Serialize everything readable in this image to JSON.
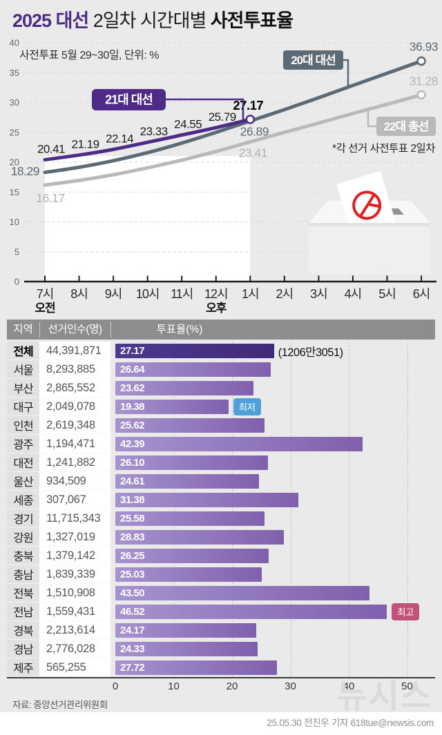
{
  "title": {
    "part1": "2025 대선",
    "part2": "2일차 시간대별",
    "part3": "사전투표율"
  },
  "line_chart_subtitle": "사전투표 5월 29~30일, 단위: %",
  "line_chart_note": "*각 선거 사전투표 2일차",
  "chart_data": [
    {
      "type": "line",
      "title": "2025 대선 2일차 시간대별 사전투표율",
      "subtitle": "사전투표 5월 29~30일, 단위: %",
      "note": "*각 선거 사전투표 2일차",
      "unit": "%",
      "x": [
        "7시",
        "8시",
        "9시",
        "10시",
        "11시",
        "12시",
        "1시",
        "2시",
        "3시",
        "4시",
        "5시",
        "6시"
      ],
      "am_label": "오전",
      "pm_label": "오후",
      "ylim": [
        0,
        40
      ],
      "y_ticks": [
        0,
        5,
        10,
        15,
        20,
        25,
        30,
        35,
        40
      ],
      "grid": "dashed-horizontal",
      "highlight_band": {
        "from": "오전 7시",
        "to": "오후 1시"
      },
      "series": [
        {
          "name": "21대 대선",
          "color": "#4d2b87",
          "values": [
            20.41,
            21.19,
            22.14,
            23.33,
            24.55,
            25.79,
            27.17
          ],
          "labels": [
            "20.41",
            "21.19",
            "22.14",
            "23.33",
            "24.55",
            "25.79",
            "27.17"
          ]
        },
        {
          "name": "20대 대선",
          "color": "#5c6a75",
          "values": [
            18.29,
            19.15,
            20.25,
            21.6,
            23.2,
            25.0,
            26.89,
            28.8,
            30.8,
            32.85,
            34.9,
            36.93
          ],
          "labeled_points": {
            "7시": 18.29,
            "오후 1시": 26.89,
            "오후 6시": 36.93
          },
          "note": "intermediate values estimated from curve"
        },
        {
          "name": "22대 총선",
          "color": "#b9b9b9",
          "values": [
            16.17,
            16.95,
            17.9,
            19.05,
            20.35,
            21.8,
            23.41,
            25.0,
            26.55,
            28.15,
            29.7,
            31.28
          ],
          "labeled_points": {
            "7시": 16.17,
            "오후 1시": 23.41,
            "오후 6시": 31.28
          },
          "note": "intermediate values estimated from curve"
        }
      ]
    },
    {
      "type": "bar",
      "title": "지역별 사전투표율(%)",
      "columns": [
        "지역",
        "선거인수(명)",
        "투표율(%)"
      ],
      "xlim": [
        0,
        50
      ],
      "x_ticks": [
        0,
        10,
        20,
        30,
        40,
        50
      ],
      "grid": "dashed-vertical",
      "rows": [
        {
          "region": "전체",
          "voters": "44,391,871",
          "rate": "27.17",
          "annotation": "(1206만3051)",
          "emphasis": true
        },
        {
          "region": "서울",
          "voters": "8,293,885",
          "rate": "26.64"
        },
        {
          "region": "부산",
          "voters": "2,865,552",
          "rate": "23.62"
        },
        {
          "region": "대구",
          "voters": "2,049,078",
          "rate": "19.38",
          "badge": "최저",
          "badge_color": "#4fa0d8"
        },
        {
          "region": "인천",
          "voters": "2,619,348",
          "rate": "25.62"
        },
        {
          "region": "광주",
          "voters": "1,194,471",
          "rate": "42.39"
        },
        {
          "region": "대전",
          "voters": "1,241,882",
          "rate": "26.10"
        },
        {
          "region": "울산",
          "voters": "934,509",
          "rate": "24.61"
        },
        {
          "region": "세종",
          "voters": "307,067",
          "rate": "31.38"
        },
        {
          "region": "경기",
          "voters": "11,715,343",
          "rate": "25.58"
        },
        {
          "region": "강원",
          "voters": "1,327,019",
          "rate": "28.83"
        },
        {
          "region": "충북",
          "voters": "1,379,142",
          "rate": "26.25"
        },
        {
          "region": "충남",
          "voters": "1,839,339",
          "rate": "25.03"
        },
        {
          "region": "전북",
          "voters": "1,510,908",
          "rate": "43.50"
        },
        {
          "region": "전남",
          "voters": "1,559,431",
          "rate": "46.52",
          "badge": "최고",
          "badge_color": "#c25378"
        },
        {
          "region": "경북",
          "voters": "2,213,614",
          "rate": "24.17"
        },
        {
          "region": "경남",
          "voters": "2,776,028",
          "rate": "24.33"
        },
        {
          "region": "제주",
          "voters": "565,255",
          "rate": "27.72"
        }
      ]
    }
  ],
  "footer": {
    "source": "자료: 중앙선거관리위원회",
    "credit": "25.05.30 전진우 기자 618tue@newsis.com",
    "watermark": "뉴시스"
  },
  "colors": {
    "accent_purple": "#4b2b87",
    "slate": "#5c6a75",
    "light_gray_line": "#b9b9b9",
    "bar_light": "#a793ce",
    "bar_dark": "#7f60ad",
    "bar_total": "#3f2b77",
    "badge_low": "#4fa0d8",
    "badge_high": "#c25378",
    "page_bg": "#eaeaea"
  }
}
